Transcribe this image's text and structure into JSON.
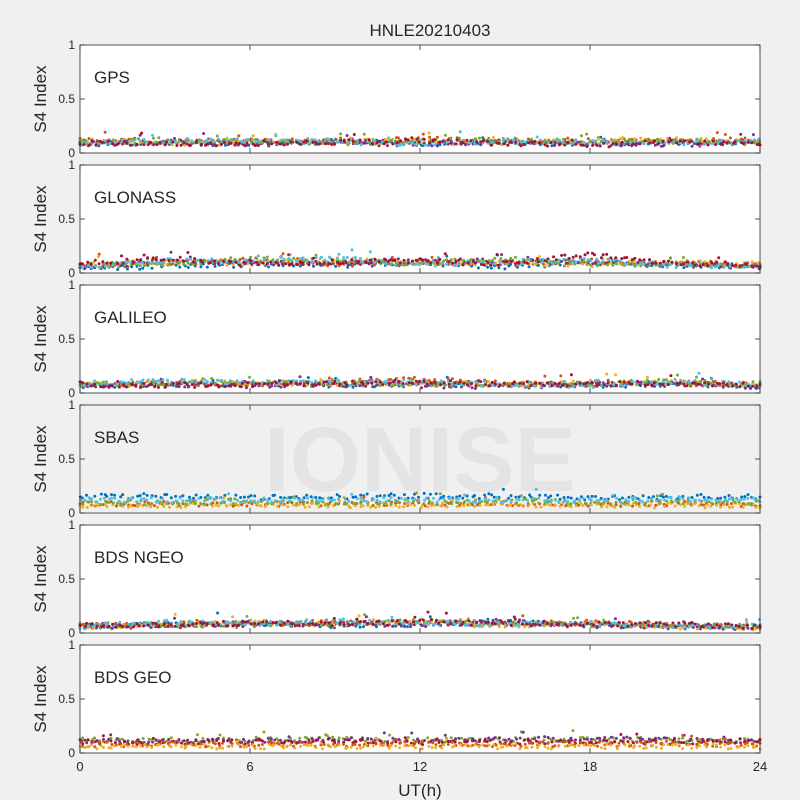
{
  "title": "HNLE20210403",
  "xlabel": "UT(h)",
  "watermark": "IONISE",
  "colors": [
    "#0072bd",
    "#d95319",
    "#edb120",
    "#7e2f8e",
    "#77ac30",
    "#4dbeee",
    "#a2142f"
  ],
  "chart_data": {
    "type": "scatter",
    "title": "HNLE20210403",
    "xlabel": "UT(h)",
    "xlim": [
      0,
      24
    ],
    "xticks": [
      0,
      6,
      12,
      18,
      24
    ],
    "ylim": [
      0,
      1
    ],
    "yticks": [
      0,
      0.5,
      1
    ],
    "ytick_labels": [
      "0",
      "0.5",
      "1"
    ],
    "grid": false,
    "panels": [
      {
        "label": "GPS",
        "ylabel": "S4 Index",
        "series": [
          {
            "color": "#0072bd",
            "x": [
              0,
              3,
              6,
              9,
              12,
              15,
              18,
              21,
              24
            ],
            "y": [
              0.09,
              0.1,
              0.08,
              0.11,
              0.09,
              0.1,
              0.08,
              0.1,
              0.09
            ]
          },
          {
            "color": "#d95319",
            "x": [
              0,
              3,
              6,
              9,
              12,
              15,
              18,
              21,
              24
            ],
            "y": [
              0.12,
              0.1,
              0.12,
              0.11,
              0.13,
              0.11,
              0.12,
              0.11,
              0.12
            ]
          },
          {
            "color": "#edb120",
            "x": [
              0,
              3,
              6,
              9,
              12,
              15,
              18,
              21,
              24
            ],
            "y": [
              0.11,
              0.09,
              0.1,
              0.12,
              0.1,
              0.09,
              0.11,
              0.12,
              0.1
            ]
          },
          {
            "color": "#7e2f8e",
            "x": [
              0,
              3,
              6,
              9,
              12,
              15,
              18,
              21,
              24
            ],
            "y": [
              0.08,
              0.1,
              0.09,
              0.1,
              0.08,
              0.1,
              0.09,
              0.08,
              0.1
            ]
          },
          {
            "color": "#77ac30",
            "x": [
              0,
              3,
              6,
              9,
              12,
              15,
              18,
              21,
              24
            ],
            "y": [
              0.1,
              0.12,
              0.11,
              0.09,
              0.11,
              0.12,
              0.1,
              0.11,
              0.09
            ]
          },
          {
            "color": "#4dbeee",
            "x": [
              0,
              3,
              6,
              9,
              12,
              15,
              18,
              21,
              24
            ],
            "y": [
              0.09,
              0.11,
              0.12,
              0.1,
              0.09,
              0.11,
              0.1,
              0.09,
              0.11
            ]
          },
          {
            "color": "#a2142f",
            "x": [
              0,
              3,
              6,
              9,
              12,
              15,
              18,
              21,
              24
            ],
            "y": [
              0.1,
              0.08,
              0.09,
              0.1,
              0.11,
              0.09,
              0.07,
              0.1,
              0.09
            ]
          }
        ]
      },
      {
        "label": "GLONASS",
        "ylabel": "S4 Index",
        "series": [
          {
            "color": "#0072bd",
            "x": [
              0,
              3,
              6,
              9,
              12,
              15,
              18,
              21,
              24
            ],
            "y": [
              0.05,
              0.06,
              0.08,
              0.07,
              0.09,
              0.06,
              0.1,
              0.07,
              0.06
            ]
          },
          {
            "color": "#d95319",
            "x": [
              0,
              3,
              6,
              9,
              12,
              15,
              18,
              21,
              24
            ],
            "y": [
              0.07,
              0.09,
              0.12,
              0.08,
              0.1,
              0.08,
              0.11,
              0.09,
              0.07
            ]
          },
          {
            "color": "#edb120",
            "x": [
              0,
              3,
              6,
              9,
              12,
              15,
              18,
              21,
              24
            ],
            "y": [
              0.08,
              0.1,
              0.09,
              0.12,
              0.1,
              0.09,
              0.08,
              0.1,
              0.08
            ]
          },
          {
            "color": "#7e2f8e",
            "x": [
              0,
              3,
              6,
              9,
              12,
              15,
              18,
              21,
              24
            ],
            "y": [
              0.06,
              0.11,
              0.1,
              0.09,
              0.12,
              0.11,
              0.1,
              0.08,
              0.06
            ]
          },
          {
            "color": "#77ac30",
            "x": [
              0,
              3,
              6,
              9,
              12,
              15,
              18,
              21,
              24
            ],
            "y": [
              0.07,
              0.08,
              0.13,
              0.11,
              0.09,
              0.13,
              0.09,
              0.08,
              0.07
            ]
          },
          {
            "color": "#4dbeee",
            "x": [
              0,
              3,
              6,
              9,
              12,
              15,
              18,
              21,
              24
            ],
            "y": [
              0.06,
              0.12,
              0.1,
              0.13,
              0.08,
              0.1,
              0.12,
              0.07,
              0.06
            ]
          },
          {
            "color": "#a2142f",
            "x": [
              0,
              3,
              6,
              9,
              12,
              15,
              18,
              21,
              24
            ],
            "y": [
              0.09,
              0.13,
              0.08,
              0.1,
              0.11,
              0.09,
              0.17,
              0.09,
              0.08
            ]
          }
        ]
      },
      {
        "label": "GALILEO",
        "ylabel": "S4 Index",
        "series": [
          {
            "color": "#0072bd",
            "x": [
              0,
              3,
              6,
              9,
              12,
              15,
              18,
              21,
              24
            ],
            "y": [
              0.07,
              0.08,
              0.09,
              0.07,
              0.08,
              0.09,
              0.07,
              0.08,
              0.07
            ]
          },
          {
            "color": "#d95319",
            "x": [
              0,
              3,
              6,
              9,
              12,
              15,
              18,
              21,
              24
            ],
            "y": [
              0.08,
              0.09,
              0.08,
              0.1,
              0.13,
              0.09,
              0.08,
              0.09,
              0.08
            ]
          },
          {
            "color": "#edb120",
            "x": [
              0,
              3,
              6,
              9,
              12,
              15,
              18,
              21,
              24
            ],
            "y": [
              0.07,
              0.1,
              0.09,
              0.08,
              0.09,
              0.08,
              0.09,
              0.1,
              0.07
            ]
          },
          {
            "color": "#7e2f8e",
            "x": [
              0,
              3,
              6,
              9,
              12,
              15,
              18,
              21,
              24
            ],
            "y": [
              0.06,
              0.08,
              0.07,
              0.08,
              0.07,
              0.06,
              0.08,
              0.09,
              0.06
            ]
          },
          {
            "color": "#77ac30",
            "x": [
              0,
              3,
              6,
              9,
              12,
              15,
              18,
              21,
              24
            ],
            "y": [
              0.08,
              0.09,
              0.1,
              0.09,
              0.08,
              0.07,
              0.09,
              0.11,
              0.08
            ]
          },
          {
            "color": "#4dbeee",
            "x": [
              0,
              3,
              6,
              9,
              12,
              15,
              18,
              21,
              24
            ],
            "y": [
              0.09,
              0.11,
              0.1,
              0.09,
              0.1,
              0.08,
              0.07,
              0.1,
              0.08
            ]
          },
          {
            "color": "#a2142f",
            "x": [
              0,
              3,
              6,
              9,
              12,
              15,
              18,
              21,
              24
            ],
            "y": [
              0.08,
              0.07,
              0.08,
              0.09,
              0.1,
              0.08,
              0.09,
              0.08,
              0.07
            ]
          }
        ]
      },
      {
        "label": "SBAS",
        "ylabel": "S4 Index",
        "series": [
          {
            "color": "#0072bd",
            "x": [
              0,
              3,
              6,
              9,
              12,
              15,
              18,
              21,
              24
            ],
            "y": [
              0.15,
              0.16,
              0.14,
              0.15,
              0.16,
              0.15,
              0.14,
              0.15,
              0.15
            ]
          },
          {
            "color": "#d95319",
            "x": [
              0,
              3,
              6,
              9,
              12,
              15,
              18,
              21,
              24
            ],
            "y": [
              0.08,
              0.09,
              0.08,
              0.09,
              0.08,
              0.09,
              0.08,
              0.09,
              0.08
            ]
          },
          {
            "color": "#edb120",
            "x": [
              0,
              3,
              6,
              9,
              12,
              15,
              18,
              21,
              24
            ],
            "y": [
              0.07,
              0.07,
              0.08,
              0.07,
              0.07,
              0.08,
              0.07,
              0.07,
              0.07
            ]
          },
          {
            "color": "#77ac30",
            "x": [
              0,
              3,
              6,
              9,
              12,
              15,
              18,
              21,
              24
            ],
            "y": [
              0.1,
              0.1,
              0.11,
              0.1,
              0.1,
              0.11,
              0.1,
              0.1,
              0.1
            ]
          },
          {
            "color": "#4dbeee",
            "x": [
              0,
              3,
              6,
              9,
              12,
              15,
              18,
              21,
              24
            ],
            "y": [
              0.12,
              0.12,
              0.12,
              0.13,
              0.12,
              0.12,
              0.12,
              0.13,
              0.12
            ]
          }
        ]
      },
      {
        "label": "BDS NGEO",
        "ylabel": "S4 Index",
        "series": [
          {
            "color": "#0072bd",
            "x": [
              0,
              3,
              6,
              9,
              12,
              15,
              18,
              21,
              24
            ],
            "y": [
              0.06,
              0.08,
              0.09,
              0.07,
              0.08,
              0.1,
              0.07,
              0.06,
              0.05
            ]
          },
          {
            "color": "#d95319",
            "x": [
              0,
              3,
              6,
              9,
              12,
              15,
              18,
              21,
              24
            ],
            "y": [
              0.07,
              0.09,
              0.08,
              0.1,
              0.09,
              0.08,
              0.1,
              0.07,
              0.06
            ]
          },
          {
            "color": "#edb120",
            "x": [
              0,
              3,
              6,
              9,
              12,
              15,
              18,
              21,
              24
            ],
            "y": [
              0.05,
              0.07,
              0.1,
              0.08,
              0.1,
              0.07,
              0.08,
              0.06,
              0.05
            ]
          },
          {
            "color": "#7e2f8e",
            "x": [
              0,
              3,
              6,
              9,
              12,
              15,
              18,
              21,
              24
            ],
            "y": [
              0.06,
              0.07,
              0.08,
              0.09,
              0.08,
              0.11,
              0.07,
              0.06,
              0.05
            ]
          },
          {
            "color": "#77ac30",
            "x": [
              0,
              3,
              6,
              9,
              12,
              15,
              18,
              21,
              24
            ],
            "y": [
              0.07,
              0.08,
              0.07,
              0.09,
              0.11,
              0.09,
              0.08,
              0.07,
              0.06
            ]
          },
          {
            "color": "#4dbeee",
            "x": [
              0,
              3,
              6,
              9,
              12,
              15,
              18,
              21,
              24
            ],
            "y": [
              0.06,
              0.1,
              0.08,
              0.11,
              0.09,
              0.08,
              0.09,
              0.07,
              0.06
            ]
          },
          {
            "color": "#a2142f",
            "x": [
              0,
              3,
              6,
              9,
              12,
              15,
              18,
              21,
              24
            ],
            "y": [
              0.07,
              0.08,
              0.09,
              0.08,
              0.1,
              0.09,
              0.08,
              0.08,
              0.06
            ]
          }
        ]
      },
      {
        "label": "BDS GEO",
        "ylabel": "S4 Index",
        "series": [
          {
            "color": "#77ac30",
            "x": [
              0,
              3,
              6,
              9,
              12,
              15,
              18,
              21,
              24
            ],
            "y": [
              0.12,
              0.12,
              0.12,
              0.13,
              0.12,
              0.12,
              0.13,
              0.12,
              0.12
            ]
          },
          {
            "color": "#7e2f8e",
            "x": [
              0,
              3,
              6,
              9,
              12,
              15,
              18,
              21,
              24
            ],
            "y": [
              0.11,
              0.12,
              0.12,
              0.12,
              0.12,
              0.13,
              0.13,
              0.12,
              0.11
            ]
          },
          {
            "color": "#a2142f",
            "x": [
              0,
              3,
              6,
              9,
              12,
              15,
              18,
              21,
              24
            ],
            "y": [
              0.1,
              0.1,
              0.1,
              0.11,
              0.1,
              0.1,
              0.1,
              0.1,
              0.1
            ]
          },
          {
            "color": "#d95319",
            "x": [
              0,
              3,
              6,
              9,
              12,
              15,
              18,
              21,
              24
            ],
            "y": [
              0.08,
              0.08,
              0.08,
              0.08,
              0.08,
              0.08,
              0.08,
              0.08,
              0.08
            ]
          },
          {
            "color": "#edb120",
            "x": [
              0,
              3,
              6,
              9,
              12,
              15,
              18,
              21,
              24
            ],
            "y": [
              0.06,
              0.06,
              0.06,
              0.06,
              0.06,
              0.06,
              0.06,
              0.06,
              0.06
            ]
          }
        ]
      }
    ]
  }
}
